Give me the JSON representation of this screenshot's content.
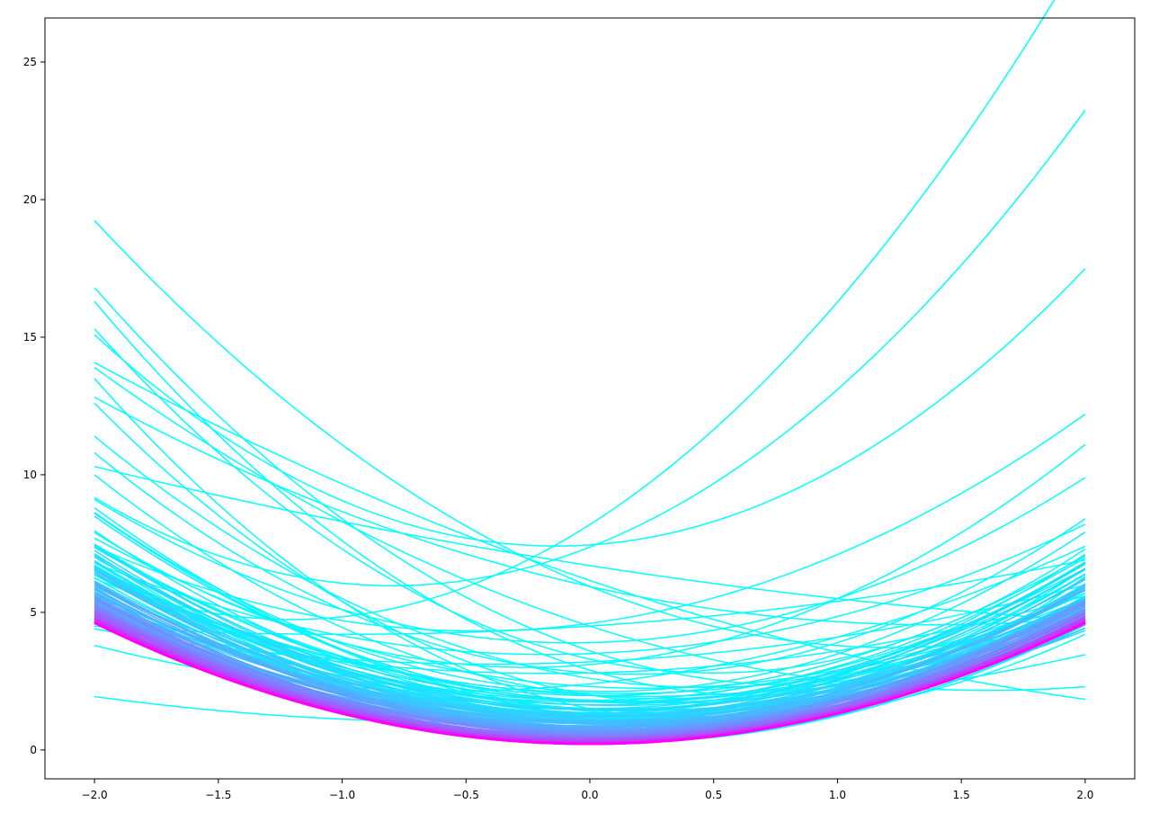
{
  "chart_data": {
    "type": "line",
    "title": "",
    "xlabel": "",
    "ylabel": "",
    "xlim": [
      -2.2,
      2.2
    ],
    "ylim": [
      -1.05,
      26.6
    ],
    "grid": false,
    "legend": "none",
    "x_ticks": [
      -2.0,
      -1.5,
      -1.0,
      -0.5,
      0.0,
      0.5,
      1.0,
      1.5,
      2.0
    ],
    "x_tick_labels": [
      "−2.0",
      "−1.5",
      "−1.0",
      "−0.5",
      "0.0",
      "0.5",
      "1.0",
      "1.5",
      "2.0"
    ],
    "y_ticks": [
      0,
      5,
      10,
      15,
      20,
      25
    ],
    "y_tick_labels": [
      "0",
      "5",
      "10",
      "15",
      "20",
      "25"
    ],
    "colormap": "cool",
    "color_start": "#00ffff",
    "color_end": "#ff00ff",
    "x_domain": [
      -2.0,
      2.0
    ],
    "series_description": "family of parabolas y = a*x^2 + b*x + c, converging toward the final (magenta) curve",
    "series": [
      {
        "a": 2.37,
        "b": 5.72,
        "c": 8.19
      },
      {
        "a": 2.21,
        "b": 0.6,
        "c": 7.45
      },
      {
        "a": 2.21,
        "b": 3.52,
        "c": 7.37
      },
      {
        "a": 1.5,
        "b": -3.65,
        "c": 5.94
      },
      {
        "a": 0.72,
        "b": -2.0,
        "c": 5.94
      },
      {
        "a": 0.45,
        "b": -3.06,
        "c": 6.16
      },
      {
        "a": 0.2,
        "b": -1.4,
        "c": 6.7
      },
      {
        "a": 0.9,
        "b": -2.9,
        "c": 4.5
      },
      {
        "a": 1.8,
        "b": -3.0,
        "c": 3.6
      },
      {
        "a": 2.0,
        "b": -2.7,
        "c": 2.9
      },
      {
        "a": 1.3,
        "b": 1.2,
        "c": 4.6
      },
      {
        "a": 1.6,
        "b": 0.8,
        "c": 3.1
      },
      {
        "a": 1.4,
        "b": 0.2,
        "c": 3.9
      },
      {
        "a": 1.1,
        "b": -0.5,
        "c": 2.3
      },
      {
        "a": 2.0,
        "b": -2.0,
        "c": 3.3
      },
      {
        "a": 0.3,
        "b": 0.6,
        "c": 4.5
      },
      {
        "a": 1.2,
        "b": -0.4,
        "c": 1.8
      },
      {
        "a": 1.9,
        "b": -1.5,
        "c": 2.0
      },
      {
        "a": 1.5,
        "b": -1.4,
        "c": 2.6
      },
      {
        "a": 0.8,
        "b": 0.9,
        "c": 2.4
      },
      {
        "a": 2.1,
        "b": -1.8,
        "c": 1.5
      },
      {
        "a": 1.7,
        "b": -0.6,
        "c": 2.8
      },
      {
        "a": 0.5,
        "b": 0.4,
        "c": 3.2
      },
      {
        "a": 1.0,
        "b": 0.35,
        "c": 3.5
      },
      {
        "a": 1.3,
        "b": -1.1,
        "c": 1.2
      },
      {
        "a": 1.55,
        "b": -0.9,
        "c": 2.0
      },
      {
        "a": 1.45,
        "b": -0.8,
        "c": 1.4
      },
      {
        "a": 0.6,
        "b": 0.2,
        "c": 2.8
      },
      {
        "a": 0.4,
        "b": 0.38,
        "c": 1.1
      },
      {
        "a": 1.25,
        "b": -0.45,
        "c": 0.65
      },
      {
        "a": 1.36,
        "b": -0.53,
        "c": 0.57
      },
      {
        "a": 1.31,
        "b": -0.5,
        "c": 0.63
      },
      {
        "a": 1.22,
        "b": -0.36,
        "c": 1.2
      },
      {
        "a": 1.18,
        "b": -0.42,
        "c": 0.7
      },
      {
        "a": 1.26,
        "b": -0.5,
        "c": 0.5
      },
      {
        "a": 1.2,
        "b": -0.25,
        "c": 0.28
      }
    ]
  }
}
